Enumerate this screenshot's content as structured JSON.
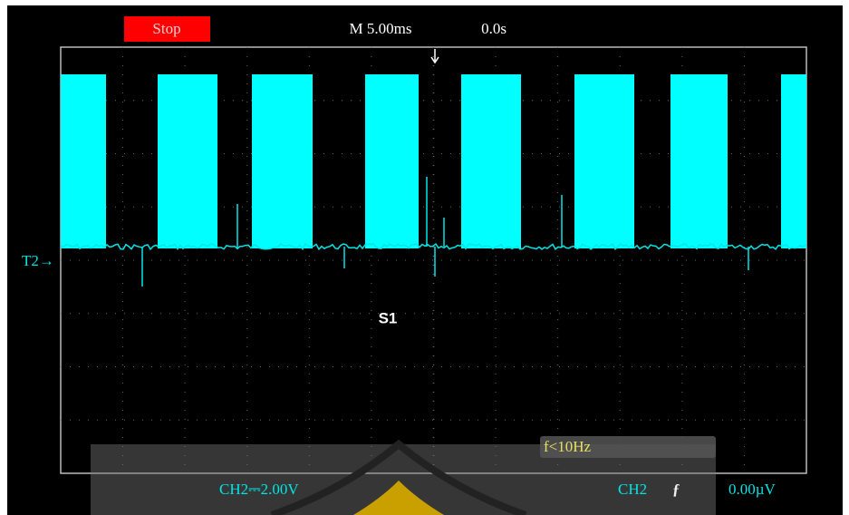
{
  "header": {
    "status": "Stop",
    "timebase": "M 5.00ms",
    "trigger_position": "0.0s"
  },
  "screen": {
    "channel_marker": "T2→",
    "label": "S1",
    "frequency": "f<10Hz"
  },
  "footer": {
    "channel_scale": "CH2⎓2.00V",
    "trigger_channel": "CH2",
    "trigger_slope": "ƒ",
    "trigger_level": "0.00µV"
  }
}
